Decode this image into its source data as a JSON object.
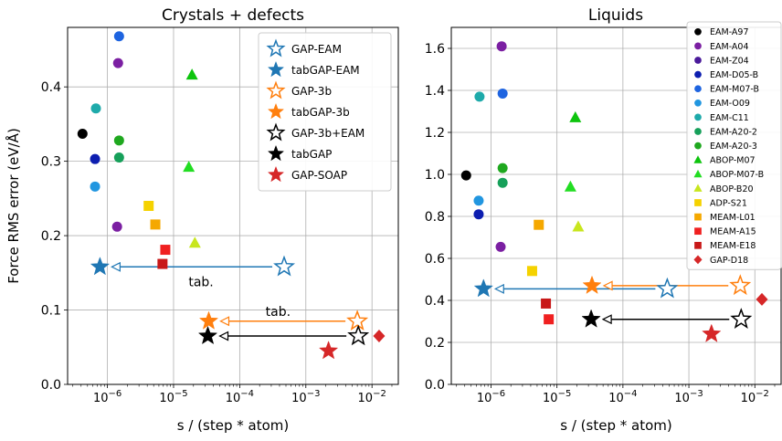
{
  "chart_data": [
    {
      "type": "scatter",
      "title": "Crystals + defects",
      "xlabel": "s / (step * atom)",
      "ylabel": "Force RMS error (eV/Å)",
      "xscale": "log",
      "xlim": [
        2.5e-07,
        0.025
      ],
      "ylim": [
        0,
        0.48
      ],
      "xticks": [
        {
          "v": 1e-06,
          "label": "10",
          "exp": "−6"
        },
        {
          "v": 1e-05,
          "label": "10",
          "exp": "−5"
        },
        {
          "v": 0.0001,
          "label": "10",
          "exp": "−4"
        },
        {
          "v": 0.001,
          "label": "10",
          "exp": "−3"
        },
        {
          "v": 0.01,
          "label": "10",
          "exp": "−2"
        }
      ],
      "yticks": [
        {
          "v": 0,
          "label": "0.0"
        },
        {
          "v": 0.1,
          "label": "0.1"
        },
        {
          "v": 0.2,
          "label": "0.2"
        },
        {
          "v": 0.3,
          "label": "0.3"
        },
        {
          "v": 0.4,
          "label": "0.4"
        }
      ],
      "grid": true,
      "legend": {
        "position": "top-right",
        "entries": [
          {
            "label": "GAP-EAM",
            "color": "#1f77b4",
            "marker": "star-open"
          },
          {
            "label": "tabGAP-EAM",
            "color": "#1f77b4",
            "marker": "star"
          },
          {
            "label": "GAP-3b",
            "color": "#ff7f0e",
            "marker": "star-open"
          },
          {
            "label": "tabGAP-3b",
            "color": "#ff7f0e",
            "marker": "star"
          },
          {
            "label": "GAP-3b+EAM",
            "color": "#000000",
            "marker": "star-open"
          },
          {
            "label": "tabGAP",
            "color": "#000000",
            "marker": "star"
          },
          {
            "label": "GAP-SOAP",
            "color": "#d62728",
            "marker": "star"
          }
        ]
      },
      "points": [
        {
          "series": "EAM-A97",
          "x": 4.2e-07,
          "y": 0.337,
          "color": "#000000",
          "marker": "circle"
        },
        {
          "series": "EAM-A04",
          "x": 1.45e-06,
          "y": 0.432,
          "color": "#7b1fa2",
          "marker": "circle"
        },
        {
          "series": "EAM-A04",
          "x": 1.4e-06,
          "y": 0.212,
          "color": "#7b1fa2",
          "marker": "circle"
        },
        {
          "series": "EAM-D05-B",
          "x": 6.5e-07,
          "y": 0.303,
          "color": "#0d1eb0",
          "marker": "circle"
        },
        {
          "series": "EAM-M07-B",
          "x": 1.5e-06,
          "y": 0.468,
          "color": "#1e64e0",
          "marker": "circle"
        },
        {
          "series": "EAM-O09",
          "x": 6.5e-07,
          "y": 0.266,
          "color": "#2196e0",
          "marker": "circle"
        },
        {
          "series": "EAM-C11",
          "x": 6.7e-07,
          "y": 0.371,
          "color": "#1eaaaa",
          "marker": "circle"
        },
        {
          "series": "EAM-A20-2",
          "x": 1.5e-06,
          "y": 0.305,
          "color": "#16a05a",
          "marker": "circle"
        },
        {
          "series": "EAM-A20-3",
          "x": 1.5e-06,
          "y": 0.328,
          "color": "#1fa81f",
          "marker": "circle"
        },
        {
          "series": "ABOP-M07",
          "x": 1.9e-05,
          "y": 0.416,
          "color": "#0dc40d",
          "marker": "triangle"
        },
        {
          "series": "ABOP-M07-B",
          "x": 1.7e-05,
          "y": 0.292,
          "color": "#22dd22",
          "marker": "triangle"
        },
        {
          "series": "ABOP-B20",
          "x": 2.1e-05,
          "y": 0.19,
          "color": "#c8e61e",
          "marker": "triangle"
        },
        {
          "series": "ADP-S21",
          "x": 4.2e-06,
          "y": 0.24,
          "color": "#f5d200",
          "marker": "square"
        },
        {
          "series": "MEAM-L01",
          "x": 5.3e-06,
          "y": 0.215,
          "color": "#f5a800",
          "marker": "square"
        },
        {
          "series": "MEAM-A15",
          "x": 7.5e-06,
          "y": 0.181,
          "color": "#f02020",
          "marker": "square"
        },
        {
          "series": "MEAM-E18",
          "x": 6.8e-06,
          "y": 0.162,
          "color": "#c81818",
          "marker": "square"
        },
        {
          "series": "GAP-EAM",
          "x": 0.00047,
          "y": 0.158,
          "color": "#1f77b4",
          "marker": "star-open"
        },
        {
          "series": "tabGAP-EAM",
          "x": 7.7e-07,
          "y": 0.158,
          "color": "#1f77b4",
          "marker": "star"
        },
        {
          "series": "GAP-3b",
          "x": 0.006,
          "y": 0.085,
          "color": "#ff7f0e",
          "marker": "star-open"
        },
        {
          "series": "tabGAP-3b",
          "x": 3.4e-05,
          "y": 0.085,
          "color": "#ff7f0e",
          "marker": "star"
        },
        {
          "series": "GAP-3b+EAM",
          "x": 0.0062,
          "y": 0.065,
          "color": "#000000",
          "marker": "star-open"
        },
        {
          "series": "tabGAP",
          "x": 3.3e-05,
          "y": 0.065,
          "color": "#000000",
          "marker": "star"
        },
        {
          "series": "GAP-SOAP",
          "x": 0.0022,
          "y": 0.045,
          "color": "#d62728",
          "marker": "star"
        },
        {
          "series": "GAP-D18",
          "x": 0.0128,
          "y": 0.065,
          "color": "#d62728",
          "marker": "diamond"
        }
      ],
      "arrows": [
        {
          "from": [
            0.00047,
            0.158
          ],
          "to": [
            7.7e-07,
            0.158
          ],
          "color": "#1f77b4",
          "label": "tab.",
          "label_at": [
            2.6e-05,
            0.138
          ]
        },
        {
          "from": [
            0.006,
            0.085
          ],
          "to": [
            3.4e-05,
            0.085
          ],
          "color": "#ff7f0e",
          "label": "tab.",
          "label_at": [
            0.00038,
            0.098
          ]
        },
        {
          "from": [
            0.0062,
            0.065
          ],
          "to": [
            3.3e-05,
            0.065
          ],
          "color": "#000000",
          "label": "",
          "label_at": null
        }
      ]
    },
    {
      "type": "scatter",
      "title": "Liquids",
      "xlabel": "s / (step * atom)",
      "ylabel": "",
      "xscale": "log",
      "xlim": [
        2.5e-07,
        0.025
      ],
      "ylim": [
        0,
        1.7
      ],
      "xticks": [
        {
          "v": 1e-06,
          "label": "10",
          "exp": "−6"
        },
        {
          "v": 1e-05,
          "label": "10",
          "exp": "−5"
        },
        {
          "v": 0.0001,
          "label": "10",
          "exp": "−4"
        },
        {
          "v": 0.001,
          "label": "10",
          "exp": "−3"
        },
        {
          "v": 0.01,
          "label": "10",
          "exp": "−2"
        }
      ],
      "yticks": [
        {
          "v": 0,
          "label": "0.0"
        },
        {
          "v": 0.2,
          "label": "0.2"
        },
        {
          "v": 0.4,
          "label": "0.4"
        },
        {
          "v": 0.6,
          "label": "0.6"
        },
        {
          "v": 0.8,
          "label": "0.8"
        },
        {
          "v": 1.0,
          "label": "1.0"
        },
        {
          "v": 1.2,
          "label": "1.2"
        },
        {
          "v": 1.4,
          "label": "1.4"
        },
        {
          "v": 1.6,
          "label": "1.6"
        }
      ],
      "grid": true,
      "legend": {
        "position": "top-right",
        "entries": [
          {
            "label": "EAM-A97",
            "color": "#000000",
            "marker": "circle"
          },
          {
            "label": "EAM-A04",
            "color": "#7b1fa2",
            "marker": "circle"
          },
          {
            "label": "EAM-Z04",
            "color": "#4a1a9a",
            "marker": "circle"
          },
          {
            "label": "EAM-D05-B",
            "color": "#0d1eb0",
            "marker": "circle"
          },
          {
            "label": "EAM-M07-B",
            "color": "#1e64e0",
            "marker": "circle"
          },
          {
            "label": "EAM-O09",
            "color": "#2196e0",
            "marker": "circle"
          },
          {
            "label": "EAM-C11",
            "color": "#1eaaaa",
            "marker": "circle"
          },
          {
            "label": "EAM-A20-2",
            "color": "#16a05a",
            "marker": "circle"
          },
          {
            "label": "EAM-A20-3",
            "color": "#1fa81f",
            "marker": "circle"
          },
          {
            "label": "ABOP-M07",
            "color": "#0dc40d",
            "marker": "triangle"
          },
          {
            "label": "ABOP-M07-B",
            "color": "#22dd22",
            "marker": "triangle"
          },
          {
            "label": "ABOP-B20",
            "color": "#c8e61e",
            "marker": "triangle"
          },
          {
            "label": "ADP-S21",
            "color": "#f5d200",
            "marker": "square"
          },
          {
            "label": "MEAM-L01",
            "color": "#f5a800",
            "marker": "square"
          },
          {
            "label": "MEAM-A15",
            "color": "#f02020",
            "marker": "square"
          },
          {
            "label": "MEAM-E18",
            "color": "#c81818",
            "marker": "square"
          },
          {
            "label": "GAP-D18",
            "color": "#d62728",
            "marker": "diamond"
          }
        ]
      },
      "points": [
        {
          "series": "EAM-A97",
          "x": 4.2e-07,
          "y": 0.995,
          "color": "#000000",
          "marker": "circle"
        },
        {
          "series": "EAM-A04",
          "x": 1.45e-06,
          "y": 1.61,
          "color": "#7b1fa2",
          "marker": "circle"
        },
        {
          "series": "EAM-A04",
          "x": 1.4e-06,
          "y": 0.655,
          "color": "#7b1fa2",
          "marker": "circle"
        },
        {
          "series": "EAM-D05-B",
          "x": 6.5e-07,
          "y": 0.81,
          "color": "#0d1eb0",
          "marker": "circle"
        },
        {
          "series": "EAM-M07-B",
          "x": 1.5e-06,
          "y": 1.385,
          "color": "#1e64e0",
          "marker": "circle"
        },
        {
          "series": "EAM-O09",
          "x": 6.5e-07,
          "y": 0.875,
          "color": "#2196e0",
          "marker": "circle"
        },
        {
          "series": "EAM-C11",
          "x": 6.7e-07,
          "y": 1.37,
          "color": "#1eaaaa",
          "marker": "circle"
        },
        {
          "series": "EAM-A20-2",
          "x": 1.5e-06,
          "y": 0.96,
          "color": "#16a05a",
          "marker": "circle"
        },
        {
          "series": "EAM-A20-3",
          "x": 1.5e-06,
          "y": 1.03,
          "color": "#1fa81f",
          "marker": "circle"
        },
        {
          "series": "ABOP-M07",
          "x": 1.9e-05,
          "y": 1.27,
          "color": "#0dc40d",
          "marker": "triangle"
        },
        {
          "series": "ABOP-M07-B",
          "x": 1.6e-05,
          "y": 0.94,
          "color": "#22dd22",
          "marker": "triangle"
        },
        {
          "series": "ABOP-B20",
          "x": 2.1e-05,
          "y": 0.75,
          "color": "#c8e61e",
          "marker": "triangle"
        },
        {
          "series": "ADP-S21",
          "x": 4.2e-06,
          "y": 0.54,
          "color": "#f5d200",
          "marker": "square"
        },
        {
          "series": "MEAM-L01",
          "x": 5.3e-06,
          "y": 0.76,
          "color": "#f5a800",
          "marker": "square"
        },
        {
          "series": "MEAM-A15",
          "x": 7.5e-06,
          "y": 0.31,
          "color": "#f02020",
          "marker": "square"
        },
        {
          "series": "MEAM-E18",
          "x": 6.8e-06,
          "y": 0.385,
          "color": "#c81818",
          "marker": "square"
        },
        {
          "series": "GAP-EAM",
          "x": 0.00047,
          "y": 0.455,
          "color": "#1f77b4",
          "marker": "star-open"
        },
        {
          "series": "tabGAP-EAM",
          "x": 7.7e-07,
          "y": 0.455,
          "color": "#1f77b4",
          "marker": "star"
        },
        {
          "series": "GAP-3b",
          "x": 0.006,
          "y": 0.47,
          "color": "#ff7f0e",
          "marker": "star-open"
        },
        {
          "series": "tabGAP-3b",
          "x": 3.4e-05,
          "y": 0.47,
          "color": "#ff7f0e",
          "marker": "star"
        },
        {
          "series": "GAP-3b+EAM",
          "x": 0.0062,
          "y": 0.31,
          "color": "#000000",
          "marker": "star-open"
        },
        {
          "series": "tabGAP",
          "x": 3.3e-05,
          "y": 0.31,
          "color": "#000000",
          "marker": "star"
        },
        {
          "series": "GAP-SOAP",
          "x": 0.0022,
          "y": 0.24,
          "color": "#d62728",
          "marker": "star"
        },
        {
          "series": "GAP-D18",
          "x": 0.0128,
          "y": 0.405,
          "color": "#d62728",
          "marker": "diamond"
        }
      ],
      "arrows": [
        {
          "from": [
            0.00047,
            0.455
          ],
          "to": [
            7.7e-07,
            0.455
          ],
          "color": "#1f77b4",
          "label": "",
          "label_at": null
        },
        {
          "from": [
            0.006,
            0.47
          ],
          "to": [
            3.4e-05,
            0.47
          ],
          "color": "#ff7f0e",
          "label": "",
          "label_at": null
        },
        {
          "from": [
            0.0062,
            0.31
          ],
          "to": [
            3.3e-05,
            0.31
          ],
          "color": "#000000",
          "label": "",
          "label_at": null
        }
      ]
    }
  ]
}
